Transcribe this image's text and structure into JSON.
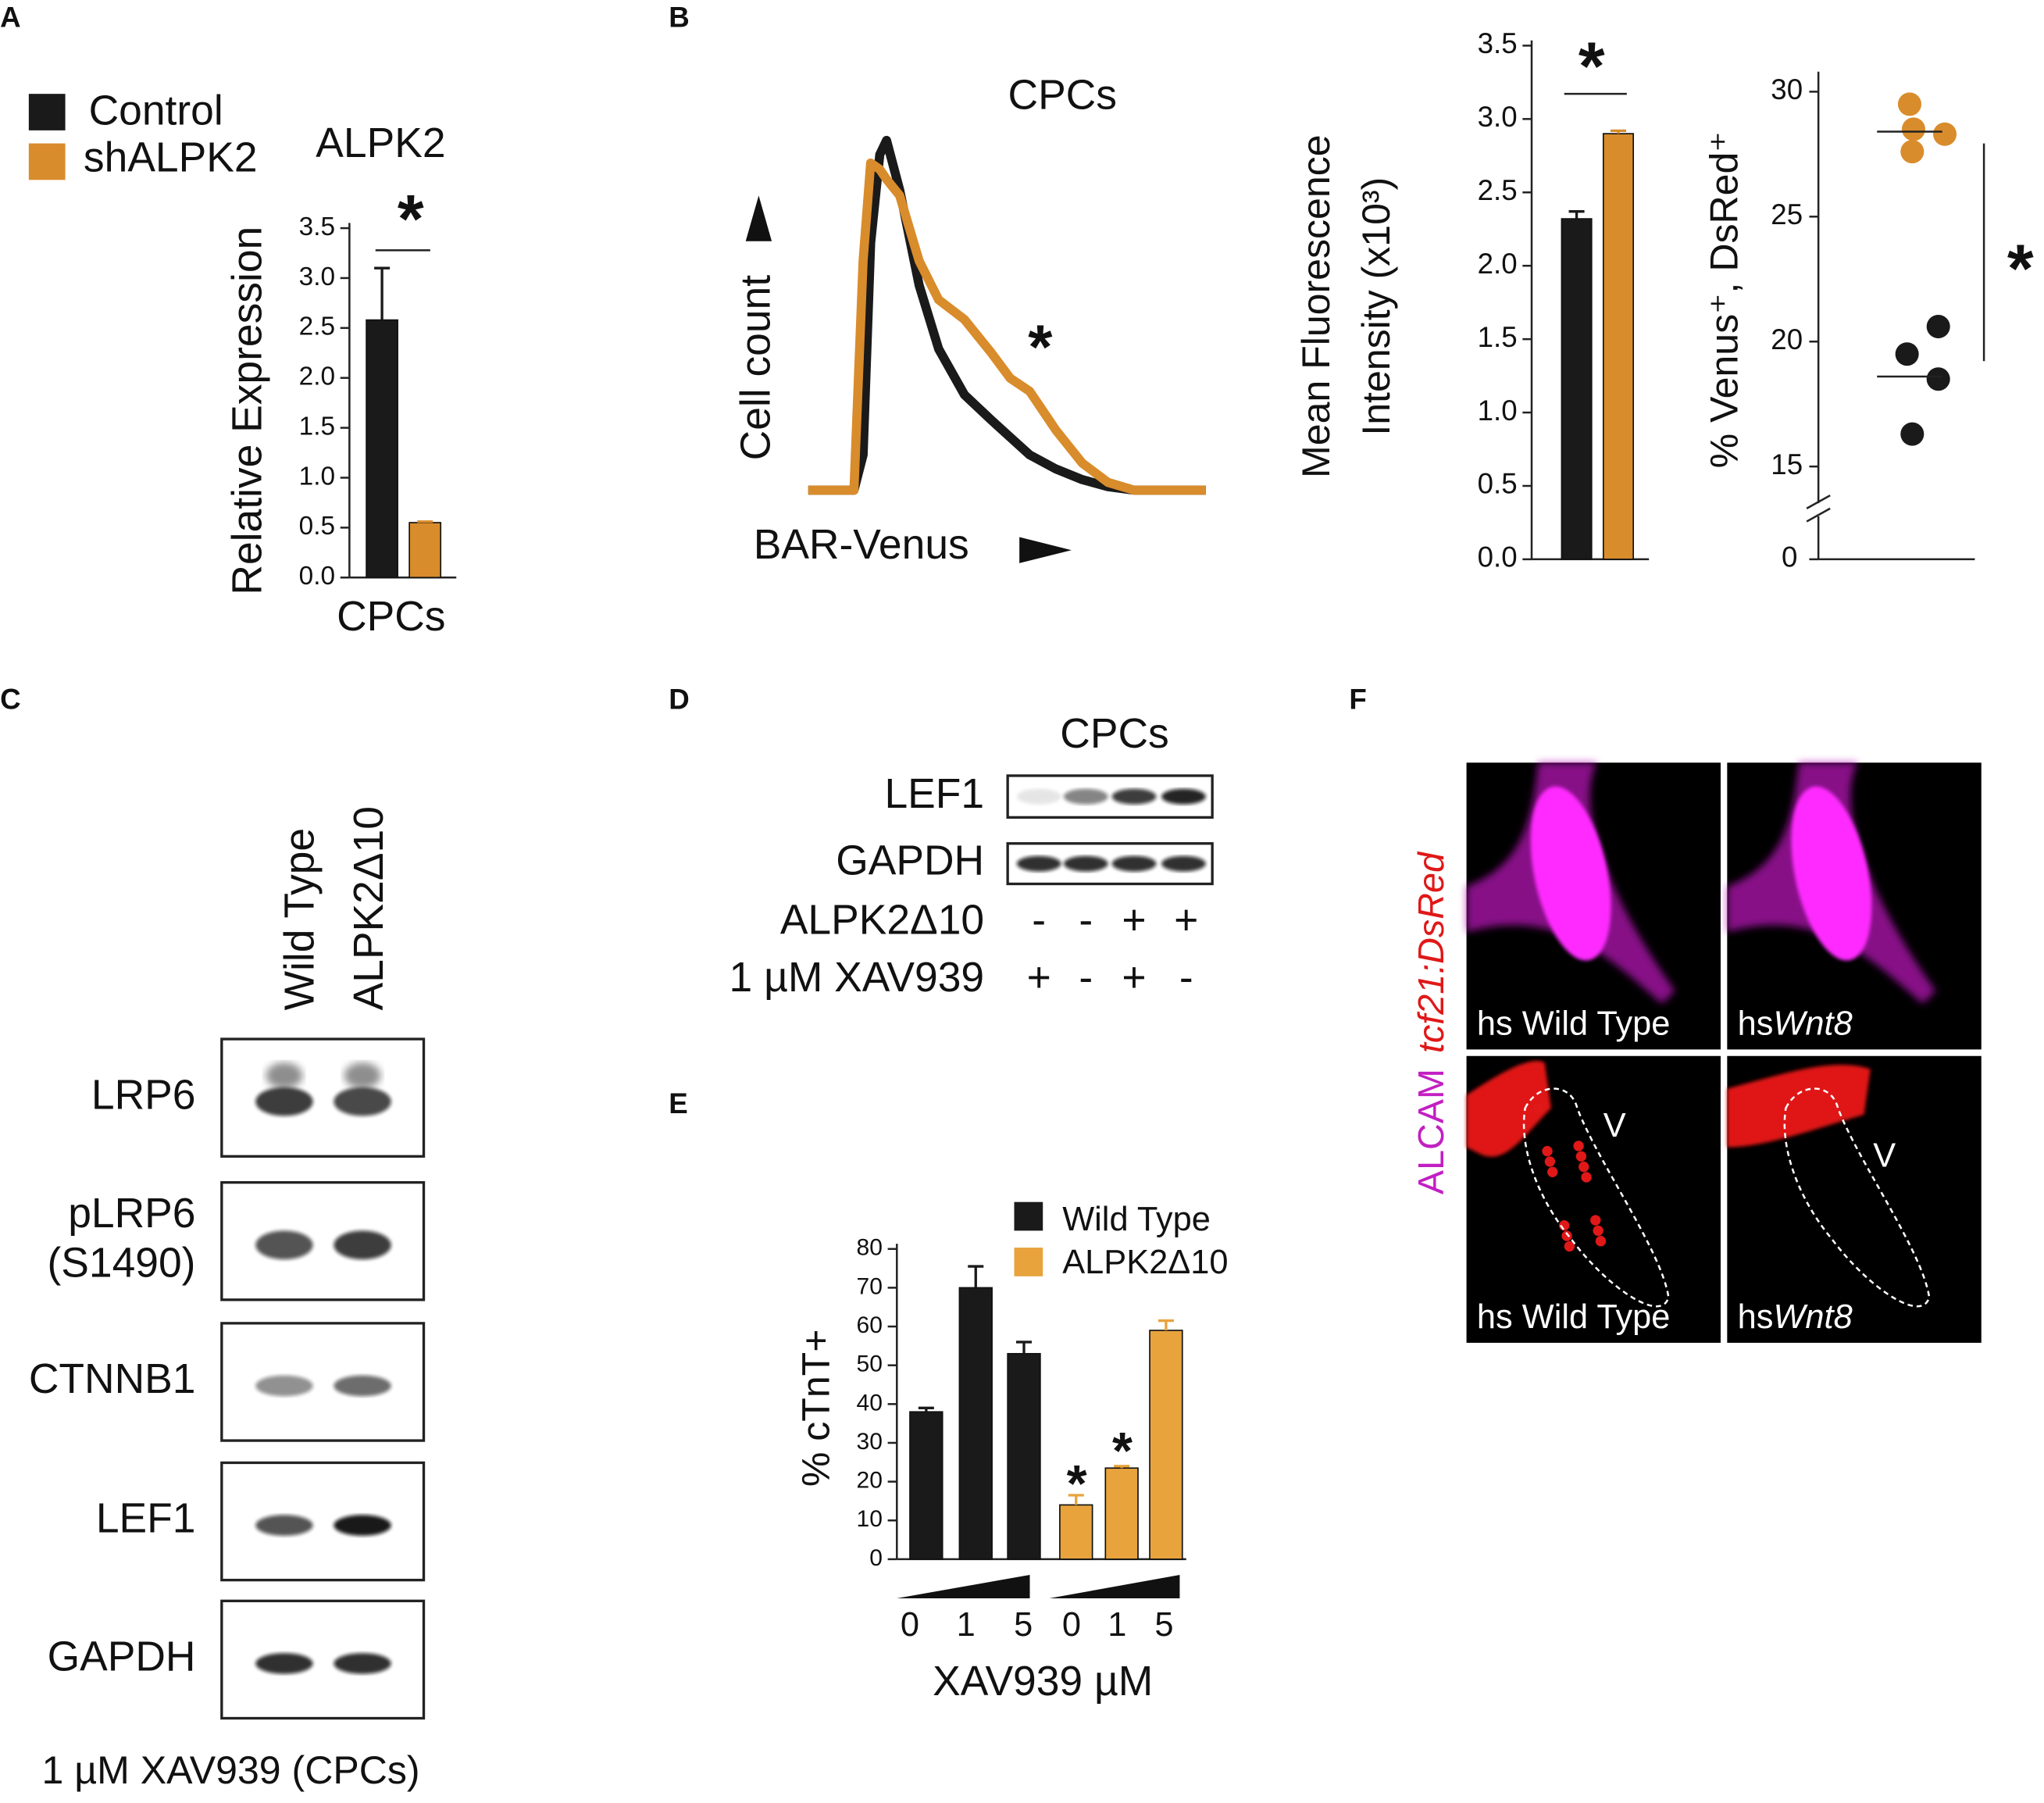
{
  "panels": {
    "labels": [
      "A",
      "B",
      "C",
      "D",
      "E",
      "F"
    ]
  },
  "chart_data": [
    {
      "type": "bar",
      "title": "ALPK2",
      "ylabel": "Relative Expression",
      "xlabel": "CPCs",
      "annotation": "*",
      "series": [
        {
          "name": "Control",
          "color": "#1a1a1a",
          "values": [
            2.58
          ],
          "errors": [
            0.52
          ]
        },
        {
          "name": "shALPK2",
          "color": "#d98c2b",
          "values": [
            0.55
          ],
          "errors": [
            0.01
          ]
        }
      ],
      "ylim": [
        0,
        3.5
      ],
      "yticks": [
        {
          "value": 0,
          "label": "0.0"
        },
        0.5,
        {
          "value": 1,
          "label": "1.0"
        },
        1.5,
        {
          "value": 2,
          "label": "2.0"
        },
        2.5,
        {
          "value": 3,
          "label": "3.0"
        },
        3.5
      ]
    },
    {
      "type": "line",
      "title": "CPCs",
      "xlabel": "BAR-Venus",
      "ylabel": "Cell count",
      "annotation": "*",
      "x": [
        0,
        11.5,
        13.8,
        15.7,
        18,
        19.7,
        23,
        27.9,
        32.8,
        39.3,
        45.9,
        50.8,
        55.7,
        62.3,
        68.9,
        75.4,
        82,
        100
      ],
      "series": [
        {
          "name": "Control",
          "color": "#1a1a1a",
          "values": [
            0,
            0,
            10,
            70,
            95,
            99,
            85,
            58,
            40,
            27,
            20,
            15,
            10,
            6,
            3,
            1,
            0,
            0
          ]
        },
        {
          "name": "shALPK2",
          "color": "#d98c2b",
          "values": [
            0,
            0,
            65,
            92.6,
            90.8,
            88,
            83.4,
            64.9,
            53.9,
            48.3,
            39.1,
            31.7,
            28,
            17,
            7.7,
            2.2,
            0,
            0
          ]
        }
      ],
      "xlim": [
        0,
        100
      ],
      "ylim": [
        0,
        100
      ]
    },
    {
      "type": "bar",
      "ylabel": [
        "Mean Fluorescence",
        "Intensity (x10³)"
      ],
      "annotation": "*",
      "series": [
        {
          "name": "Control",
          "color": "#1a1a1a",
          "values": [
            2.32
          ],
          "errors": [
            0.05
          ]
        },
        {
          "name": "shALPK2",
          "color": "#d98c2b",
          "values": [
            2.9
          ],
          "errors": [
            0.02
          ]
        }
      ],
      "ylim": [
        0,
        3.5
      ],
      "yticks": [
        {
          "value": 0,
          "label": "0.0"
        },
        0.5,
        {
          "value": 1,
          "label": "1.0"
        },
        1.5,
        {
          "value": 2,
          "label": "2.0"
        },
        2.5,
        {
          "value": 3,
          "label": "3.0"
        },
        3.5
      ]
    },
    {
      "type": "strip",
      "ylabel": "% Venus⁺, DsRed⁺",
      "annotation": "*",
      "series": [
        {
          "name": "shALPK2",
          "color": "#d98c2b",
          "values": [
            29.5,
            28.5,
            28.3,
            27.6
          ],
          "median": 28.4
        },
        {
          "name": "Control",
          "color": "#1a1a1a",
          "values": [
            20.6,
            19.5,
            18.5,
            16.3
          ],
          "median": 18.6
        }
      ],
      "ylim": [
        14,
        30.8
      ],
      "yticks": [
        15,
        20,
        25,
        30
      ],
      "ybreak_tick": 0
    },
    {
      "type": "bar",
      "ylabel": "% cTnT+",
      "xlabel": "XAV939 µM",
      "annotations": [
        "*",
        "*"
      ],
      "categories": [
        "0",
        "1",
        "5"
      ],
      "series": [
        {
          "name": "Wild Type",
          "color": "#1a1a1a",
          "values": [
            38,
            70,
            53
          ],
          "errors": [
            1,
            5.5,
            3
          ]
        },
        {
          "name": "ALPK2Δ10",
          "color": "#e8a33d",
          "values": [
            14,
            23.5,
            59
          ],
          "errors": [
            2.5,
            0.5,
            2.5
          ]
        }
      ],
      "ylim": [
        0,
        80
      ],
      "yticks": [
        0,
        10,
        20,
        30,
        40,
        50,
        60,
        70,
        80
      ]
    }
  ],
  "blot_c": {
    "lanes": [
      "Wild Type",
      "ALPK2Δ10"
    ],
    "rows": [
      [
        "LRP6"
      ],
      [
        "pLRP6",
        "(S1490)"
      ],
      [
        "CTNNB1"
      ],
      [
        "LEF1"
      ],
      [
        "GAPDH"
      ]
    ],
    "caption": "1 µM XAV939 (CPCs)"
  },
  "blot_d": {
    "title": "CPCs",
    "rows": [
      "LEF1",
      "GAPDH"
    ],
    "conditions": [
      {
        "name": "ALPK2Δ10",
        "values": [
          "-",
          "-",
          "+",
          "+"
        ]
      },
      {
        "name": "1 µM XAV939",
        "values": [
          "+",
          "-",
          "+",
          "-"
        ]
      }
    ]
  },
  "image_f": {
    "side_label": [
      "ALCAM",
      "tcf21:DsRed"
    ],
    "tiles": [
      {
        "prefix": "hs Wild Type",
        "italic": ""
      },
      {
        "prefix": "hs",
        "italic": "Wnt8"
      },
      {
        "prefix": "hs Wild Type",
        "italic": "",
        "mark": "V"
      },
      {
        "prefix": "hs",
        "italic": "Wnt8",
        "mark": "V"
      }
    ]
  }
}
